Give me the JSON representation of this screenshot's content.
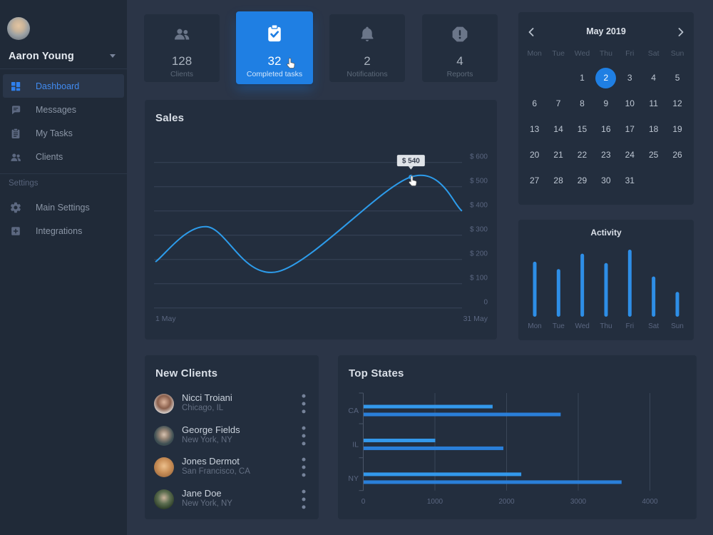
{
  "colors": {
    "accent_blue": "#1f7fe3",
    "line_blue": "#2d9ceb",
    "activity_bar_blue": "#2e8ee6",
    "hbar_light_blue": "#3398eb",
    "hbar_dark_blue": "#2a7fd9",
    "card_bg": "#232e3e",
    "sidebar_bg": "#202a38",
    "page_bg": "#2b3547"
  },
  "sidebar": {
    "user_name": "Aaron Young",
    "nav_items": [
      {
        "label": "Dashboard",
        "icon": "dashboard-grid-icon",
        "active": true
      },
      {
        "label": "Messages",
        "icon": "messages-icon",
        "active": false
      },
      {
        "label": "My Tasks",
        "icon": "tasks-icon",
        "active": false
      },
      {
        "label": "Clients",
        "icon": "clients-icon",
        "active": false
      }
    ],
    "section_label": "Settings",
    "settings_items": [
      {
        "label": "Main Settings",
        "icon": "gear-icon",
        "active": false
      },
      {
        "label": "Integrations",
        "icon": "integrations-icon",
        "active": false
      }
    ]
  },
  "stats": [
    {
      "value": "128",
      "label": "Clients",
      "icon": "users-icon",
      "active": false
    },
    {
      "value": "32",
      "label": "Completed tasks",
      "icon": "clipboard-check-icon",
      "active": true
    },
    {
      "value": "2",
      "label": "Notifications",
      "icon": "bell-icon",
      "active": false
    },
    {
      "value": "4",
      "label": "Reports",
      "icon": "alert-octagon-icon",
      "active": false
    }
  ],
  "calendar": {
    "title": "May 2019",
    "prev_icon": "chevron-left-icon",
    "next_icon": "chevron-right-icon",
    "weekdays": [
      "Mon",
      "Tue",
      "Wed",
      "Thu",
      "Fri",
      "Sat",
      "Sun"
    ],
    "weeks": [
      [
        null,
        null,
        1,
        2,
        3,
        4,
        5
      ],
      [
        6,
        7,
        8,
        9,
        10,
        11,
        12
      ],
      [
        13,
        14,
        15,
        16,
        17,
        18,
        19
      ],
      [
        20,
        21,
        22,
        23,
        24,
        25,
        26
      ],
      [
        27,
        28,
        29,
        30,
        31,
        null,
        null
      ]
    ],
    "selected_day": 2
  },
  "new_clients": {
    "title": "New Clients",
    "menu_icon": "kebab-menu-icon",
    "items": [
      {
        "name": "Nicci Troiani",
        "location": "Chicago, IL"
      },
      {
        "name": "George Fields",
        "location": "New York, NY"
      },
      {
        "name": "Jones Dermot",
        "location": "San Francisco, CA"
      },
      {
        "name": "Jane Doe",
        "location": "New York, NY"
      }
    ]
  },
  "chart_data": [
    {
      "id": "sales",
      "type": "line",
      "title": "Sales",
      "x_start_label": "1 May",
      "x_end_label": "31 May",
      "x_range_days": [
        1,
        31
      ],
      "ylim": [
        0,
        600
      ],
      "y_tick_values": [
        600,
        500,
        400,
        300,
        200,
        100,
        0
      ],
      "y_tick_labels": [
        "$ 600",
        "$ 500",
        "$ 400",
        "$ 300",
        "$ 200",
        "$ 100",
        "0"
      ],
      "grid": true,
      "points": [
        {
          "day": 1,
          "value": 190
        },
        {
          "day": 6,
          "value": 335
        },
        {
          "day": 13,
          "value": 150
        },
        {
          "day": 26,
          "value": 540
        },
        {
          "day": 31,
          "value": 400
        }
      ],
      "tooltip": {
        "label": "$ 540",
        "day": 26,
        "value": 540
      }
    },
    {
      "id": "activity",
      "type": "bar",
      "title": "Activity",
      "categories": [
        "Mon",
        "Tue",
        "Wed",
        "Thu",
        "Fri",
        "Sat",
        "Sun"
      ],
      "values": [
        82,
        71,
        94,
        80,
        100,
        60,
        37
      ],
      "ylim": [
        0,
        100
      ],
      "grid": false
    },
    {
      "id": "top_states",
      "type": "horizontal-grouped-bar",
      "title": "Top States",
      "categories": [
        "CA",
        "IL",
        "NY"
      ],
      "series": [
        {
          "name": "series-1",
          "values": [
            1800,
            1000,
            2200
          ]
        },
        {
          "name": "series-2",
          "values": [
            2750,
            1950,
            3600
          ]
        }
      ],
      "x_ticks": [
        0,
        1000,
        2000,
        3000,
        4000
      ],
      "xlim": [
        0,
        4000
      ],
      "grid": true,
      "legend": "none"
    }
  ]
}
